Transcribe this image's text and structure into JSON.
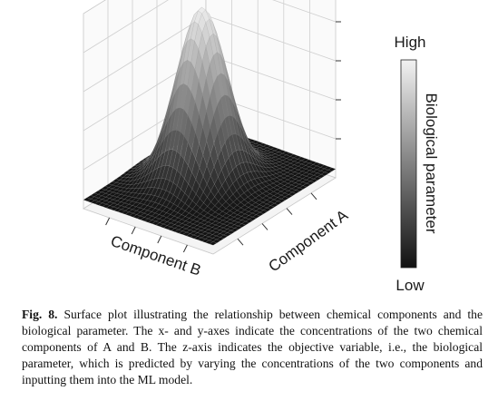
{
  "chart_data": {
    "type": "surface3d",
    "x_label": "Component A",
    "y_label": "Component B",
    "colorbar": {
      "label": "Biological parameter",
      "high_label": "High",
      "low_label": "Low",
      "colormap": "grayscale",
      "high_color": "#f2f2f2",
      "low_color": "#111111"
    },
    "surface": {
      "shape": "single gaussian peak",
      "peak_position": "center",
      "base_level": "low",
      "peak_level": "high"
    },
    "grid": true
  },
  "caption": {
    "fig_label": "Fig. 8.",
    "text": "Surface plot illustrating the relationship between chemical components and the biological parameter. The x- and y-axes indicate the concentrations of the two chemical components of A and B. The z-axis indicates the objective variable, i.e., the biological parameter, which is predicted by varying the concentrations of the two components and inputting them into the ML model."
  }
}
